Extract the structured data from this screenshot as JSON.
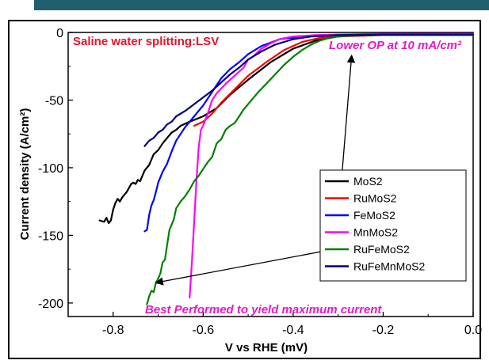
{
  "colors": {
    "banner": "#1f5f6e",
    "annotation_red": "#e8122a",
    "annotation_magenta": "#e818c8"
  },
  "chart_data": {
    "type": "line",
    "title": "",
    "xlabel": "V vs RHE (mV)",
    "ylabel": "Current density (A/cm²)",
    "xlim": [
      -0.9,
      0.0
    ],
    "ylim": [
      -210,
      0
    ],
    "x_ticks": [
      "-0.8",
      "-0.6",
      "-0.4",
      "-0.2",
      "0.0"
    ],
    "y_ticks": [
      "0",
      "-50",
      "-100",
      "-150",
      "-200"
    ],
    "grid": false,
    "legend_position": "lower-right",
    "annotations": {
      "top_left": "Saline water splitting:LSV",
      "top_right": "Lower OP at 10 mA/cm²",
      "bottom": "Best Performed to yield maximum current"
    },
    "series": [
      {
        "name": "MoS2",
        "color": "#000000",
        "points": [
          [
            -0.83,
            -139
          ],
          [
            -0.82,
            -140
          ],
          [
            -0.815,
            -137
          ],
          [
            -0.81,
            -141
          ],
          [
            -0.805,
            -139
          ],
          [
            -0.8,
            -131
          ],
          [
            -0.795,
            -126
          ],
          [
            -0.79,
            -123
          ],
          [
            -0.785,
            -125
          ],
          [
            -0.78,
            -122
          ],
          [
            -0.77,
            -118
          ],
          [
            -0.76,
            -112
          ],
          [
            -0.755,
            -111
          ],
          [
            -0.75,
            -112
          ],
          [
            -0.745,
            -109
          ],
          [
            -0.74,
            -110
          ],
          [
            -0.73,
            -102
          ],
          [
            -0.72,
            -98
          ],
          [
            -0.71,
            -90
          ],
          [
            -0.7,
            -87
          ],
          [
            -0.69,
            -82
          ],
          [
            -0.68,
            -78
          ],
          [
            -0.67,
            -74
          ],
          [
            -0.66,
            -72
          ],
          [
            -0.65,
            -69
          ],
          [
            -0.63,
            -66
          ],
          [
            -0.6,
            -62
          ],
          [
            -0.57,
            -56
          ],
          [
            -0.54,
            -46
          ],
          [
            -0.5,
            -35
          ],
          [
            -0.45,
            -22
          ],
          [
            -0.4,
            -12
          ],
          [
            -0.35,
            -6
          ],
          [
            -0.3,
            -3
          ],
          [
            -0.25,
            -2
          ],
          [
            -0.2,
            -1.5
          ],
          [
            -0.1,
            -1
          ],
          [
            0.0,
            -1
          ]
        ]
      },
      {
        "name": "RuMoS2",
        "color": "#ff0000",
        "points": [
          [
            -0.62,
            -69
          ],
          [
            -0.6,
            -66
          ],
          [
            -0.58,
            -60
          ],
          [
            -0.56,
            -52
          ],
          [
            -0.53,
            -42
          ],
          [
            -0.5,
            -32
          ],
          [
            -0.46,
            -22
          ],
          [
            -0.42,
            -13
          ],
          [
            -0.38,
            -7
          ],
          [
            -0.34,
            -4
          ],
          [
            -0.3,
            -3
          ],
          [
            -0.2,
            -2
          ],
          [
            -0.1,
            -1.5
          ],
          [
            0.0,
            -1.5
          ]
        ]
      },
      {
        "name": "FeMoS2",
        "color": "#0000ff",
        "points": [
          [
            -0.73,
            -147
          ],
          [
            -0.725,
            -146
          ],
          [
            -0.72,
            -135
          ],
          [
            -0.715,
            -128
          ],
          [
            -0.71,
            -124
          ],
          [
            -0.705,
            -118
          ],
          [
            -0.7,
            -111
          ],
          [
            -0.69,
            -103
          ],
          [
            -0.68,
            -97
          ],
          [
            -0.67,
            -88
          ],
          [
            -0.66,
            -80
          ],
          [
            -0.64,
            -70
          ],
          [
            -0.62,
            -62
          ],
          [
            -0.6,
            -54
          ],
          [
            -0.58,
            -44
          ],
          [
            -0.56,
            -34
          ],
          [
            -0.54,
            -27
          ],
          [
            -0.52,
            -22
          ],
          [
            -0.5,
            -16
          ],
          [
            -0.47,
            -10
          ],
          [
            -0.43,
            -5
          ],
          [
            -0.38,
            -3
          ],
          [
            -0.3,
            -2
          ],
          [
            -0.2,
            -1
          ],
          [
            0.0,
            -1
          ]
        ]
      },
      {
        "name": "MnMoS2",
        "color": "#ff00ff",
        "points": [
          [
            -0.63,
            -196
          ],
          [
            -0.625,
            -170
          ],
          [
            -0.62,
            -140
          ],
          [
            -0.615,
            -110
          ],
          [
            -0.61,
            -85
          ],
          [
            -0.605,
            -72
          ],
          [
            -0.6,
            -69
          ],
          [
            -0.59,
            -60
          ],
          [
            -0.58,
            -50
          ],
          [
            -0.57,
            -45
          ],
          [
            -0.55,
            -38
          ],
          [
            -0.53,
            -32
          ],
          [
            -0.51,
            -26
          ],
          [
            -0.5,
            -20
          ],
          [
            -0.49,
            -18
          ],
          [
            -0.47,
            -12
          ],
          [
            -0.45,
            -8
          ],
          [
            -0.43,
            -5
          ],
          [
            -0.4,
            -3
          ],
          [
            -0.35,
            -2
          ],
          [
            -0.3,
            -1.5
          ],
          [
            -0.2,
            -1
          ],
          [
            0.0,
            -1
          ]
        ]
      },
      {
        "name": "RuFeMoS2",
        "color": "#008000",
        "points": [
          [
            -0.725,
            -201
          ],
          [
            -0.72,
            -195
          ],
          [
            -0.715,
            -191
          ],
          [
            -0.71,
            -192
          ],
          [
            -0.705,
            -185
          ],
          [
            -0.7,
            -182
          ],
          [
            -0.695,
            -178
          ],
          [
            -0.69,
            -170
          ],
          [
            -0.685,
            -168
          ],
          [
            -0.68,
            -157
          ],
          [
            -0.675,
            -146
          ],
          [
            -0.67,
            -142
          ],
          [
            -0.665,
            -138
          ],
          [
            -0.66,
            -130
          ],
          [
            -0.65,
            -125
          ],
          [
            -0.64,
            -121
          ],
          [
            -0.63,
            -116
          ],
          [
            -0.62,
            -110
          ],
          [
            -0.61,
            -106
          ],
          [
            -0.6,
            -101
          ],
          [
            -0.59,
            -96
          ],
          [
            -0.58,
            -92
          ],
          [
            -0.57,
            -82
          ],
          [
            -0.56,
            -79
          ],
          [
            -0.55,
            -72
          ],
          [
            -0.54,
            -69
          ],
          [
            -0.53,
            -67
          ],
          [
            -0.52,
            -62
          ],
          [
            -0.51,
            -57
          ],
          [
            -0.5,
            -53
          ],
          [
            -0.48,
            -45
          ],
          [
            -0.46,
            -38
          ],
          [
            -0.44,
            -31
          ],
          [
            -0.42,
            -24
          ],
          [
            -0.4,
            -18
          ],
          [
            -0.38,
            -13
          ],
          [
            -0.36,
            -9
          ],
          [
            -0.34,
            -6
          ],
          [
            -0.32,
            -4
          ],
          [
            -0.3,
            -3
          ],
          [
            -0.25,
            -2
          ],
          [
            -0.2,
            -2
          ],
          [
            0.0,
            -2
          ]
        ]
      },
      {
        "name": "RuFeMnMoS2",
        "color": "#00007f",
        "points": [
          [
            -0.73,
            -84
          ],
          [
            -0.72,
            -80
          ],
          [
            -0.71,
            -78
          ],
          [
            -0.7,
            -74
          ],
          [
            -0.69,
            -72
          ],
          [
            -0.68,
            -68
          ],
          [
            -0.67,
            -66
          ],
          [
            -0.66,
            -62
          ],
          [
            -0.64,
            -58
          ],
          [
            -0.62,
            -53
          ],
          [
            -0.6,
            -48
          ],
          [
            -0.58,
            -43
          ],
          [
            -0.56,
            -37
          ],
          [
            -0.54,
            -31
          ],
          [
            -0.52,
            -26
          ],
          [
            -0.5,
            -20
          ],
          [
            -0.47,
            -14
          ],
          [
            -0.44,
            -9
          ],
          [
            -0.4,
            -5
          ],
          [
            -0.36,
            -3
          ],
          [
            -0.3,
            -2
          ],
          [
            -0.2,
            -1.5
          ],
          [
            0.0,
            -1.5
          ]
        ]
      }
    ]
  }
}
